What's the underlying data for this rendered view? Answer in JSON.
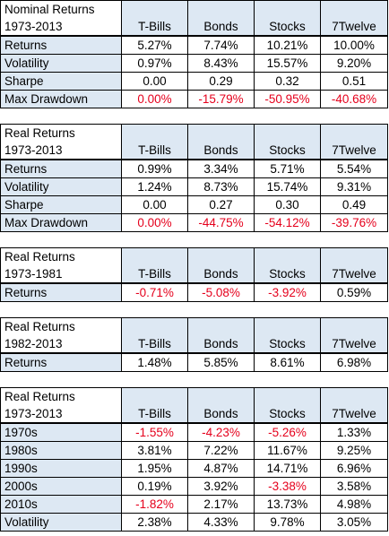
{
  "columns": [
    "T-Bills",
    "Bonds",
    "Stocks",
    "7Twelve"
  ],
  "tables": [
    {
      "title": "Nominal Returns",
      "period": "1973-2013",
      "rows": [
        {
          "label": "Returns",
          "values": [
            "5.27%",
            "7.74%",
            "10.21%",
            "10.00%"
          ],
          "negative": [
            false,
            false,
            false,
            false
          ]
        },
        {
          "label": "Volatility",
          "values": [
            "0.97%",
            "8.43%",
            "15.57%",
            "9.20%"
          ],
          "negative": [
            false,
            false,
            false,
            false
          ]
        },
        {
          "label": "Sharpe",
          "values": [
            "0.00",
            "0.29",
            "0.32",
            "0.51"
          ],
          "negative": [
            false,
            false,
            false,
            false
          ]
        },
        {
          "label": "Max Drawdown",
          "values": [
            "0.00%",
            "-15.79%",
            "-50.95%",
            "-40.68%"
          ],
          "negative": [
            true,
            true,
            true,
            true
          ]
        }
      ]
    },
    {
      "title": "Real Returns",
      "period": "1973-2013",
      "rows": [
        {
          "label": "Returns",
          "values": [
            "0.99%",
            "3.34%",
            "5.71%",
            "5.54%"
          ],
          "negative": [
            false,
            false,
            false,
            false
          ]
        },
        {
          "label": "Volatility",
          "values": [
            "1.24%",
            "8.73%",
            "15.74%",
            "9.31%"
          ],
          "negative": [
            false,
            false,
            false,
            false
          ]
        },
        {
          "label": "Sharpe",
          "values": [
            "0.00",
            "0.27",
            "0.30",
            "0.49"
          ],
          "negative": [
            false,
            false,
            false,
            false
          ]
        },
        {
          "label": "Max Drawdown",
          "values": [
            "0.00%",
            "-44.75%",
            "-54.12%",
            "-39.76%"
          ],
          "negative": [
            true,
            true,
            true,
            true
          ]
        }
      ]
    },
    {
      "title": "Real Returns",
      "period": "1973-1981",
      "rows": [
        {
          "label": "Returns",
          "values": [
            "-0.71%",
            "-5.08%",
            "-3.92%",
            "0.59%"
          ],
          "negative": [
            true,
            true,
            true,
            false
          ]
        }
      ]
    },
    {
      "title": "Real Returns",
      "period": "1982-2013",
      "rows": [
        {
          "label": "Returns",
          "values": [
            "1.48%",
            "5.85%",
            "8.61%",
            "6.98%"
          ],
          "negative": [
            false,
            false,
            false,
            false
          ]
        }
      ]
    },
    {
      "title": "Real Returns",
      "period": "1973-2013",
      "rows": [
        {
          "label": "1970s",
          "values": [
            "-1.55%",
            "-4.23%",
            "-5.26%",
            "1.33%"
          ],
          "negative": [
            true,
            true,
            true,
            false
          ]
        },
        {
          "label": "1980s",
          "values": [
            "3.81%",
            "7.22%",
            "11.67%",
            "9.25%"
          ],
          "negative": [
            false,
            false,
            false,
            false
          ]
        },
        {
          "label": "1990s",
          "values": [
            "1.95%",
            "4.87%",
            "14.71%",
            "6.96%"
          ],
          "negative": [
            false,
            false,
            false,
            false
          ]
        },
        {
          "label": "2000s",
          "values": [
            "0.19%",
            "3.92%",
            "-3.38%",
            "3.58%"
          ],
          "negative": [
            false,
            false,
            true,
            false
          ]
        },
        {
          "label": "2010s",
          "values": [
            "-1.82%",
            "2.17%",
            "13.73%",
            "4.98%"
          ],
          "negative": [
            true,
            false,
            false,
            false
          ]
        },
        {
          "label": "Volatility",
          "values": [
            "2.38%",
            "4.33%",
            "9.78%",
            "3.05%"
          ],
          "negative": [
            false,
            false,
            false,
            false
          ]
        }
      ]
    }
  ]
}
